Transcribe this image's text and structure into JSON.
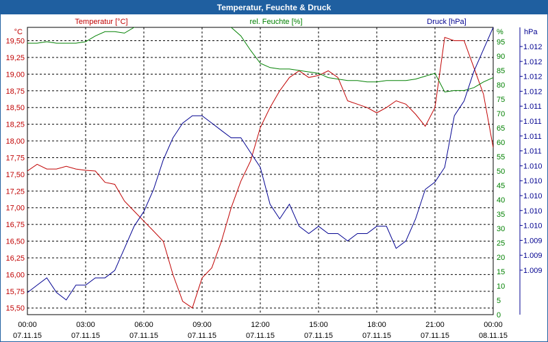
{
  "window": {
    "title": "Temperatur, Feuchte & Druck"
  },
  "colors": {
    "temperature": "#c00000",
    "humidity": "#008000",
    "pressure": "#000090",
    "grid": "#000000"
  },
  "chart_data": {
    "type": "line",
    "title": "Temperatur, Feuchte & Druck",
    "grid": true,
    "legend_labels": {
      "temperature": "Temperatur [°C]",
      "humidity": "rel. Feuchte [%]",
      "pressure": "Druck [hPa]"
    },
    "axes": {
      "left": {
        "unit": "°C",
        "range": [
          15.4,
          19.7
        ],
        "ticks": [
          "19,50",
          "19,25",
          "19,00",
          "18,75",
          "18,50",
          "18,25",
          "18,00",
          "17,75",
          "17,50",
          "17,25",
          "17,00",
          "16,75",
          "16,50",
          "16,25",
          "16,00",
          "15,75",
          "15,50"
        ],
        "tick_values": [
          19.5,
          19.25,
          19.0,
          18.75,
          18.5,
          18.25,
          18.0,
          17.75,
          17.5,
          17.25,
          17.0,
          16.75,
          16.5,
          16.25,
          16.0,
          15.75,
          15.5
        ]
      },
      "right1": {
        "unit": "%",
        "range": [
          0,
          100
        ],
        "ticks": [
          "95",
          "90",
          "85",
          "80",
          "75",
          "70",
          "65",
          "60",
          "55",
          "50",
          "45",
          "40",
          "35",
          "30",
          "25",
          "20",
          "15",
          "10",
          "5",
          "0"
        ],
        "tick_values": [
          95,
          90,
          85,
          80,
          75,
          70,
          65,
          60,
          55,
          50,
          45,
          40,
          35,
          30,
          25,
          20,
          15,
          10,
          5,
          0
        ]
      },
      "right2": {
        "unit": "hPa",
        "range": [
          1008.6,
          1012.5
        ],
        "ticks": [
          "1.012",
          "1.012",
          "1.012",
          "1.012",
          "1.011",
          "1.011",
          "1.011",
          "1.011",
          "1.010",
          "1.010",
          "1.010",
          "1.010",
          "1.010",
          "1.009",
          "1.009",
          "1.009"
        ]
      },
      "x": {
        "range_hours": [
          0,
          24
        ],
        "ticks": [
          {
            "time": "00:00",
            "date": "07.11.15"
          },
          {
            "time": "03:00",
            "date": "07.11.15"
          },
          {
            "time": "06:00",
            "date": "07.11.15"
          },
          {
            "time": "09:00",
            "date": "07.11.15"
          },
          {
            "time": "12:00",
            "date": "07.11.15"
          },
          {
            "time": "15:00",
            "date": "07.11.15"
          },
          {
            "time": "18:00",
            "date": "07.11.15"
          },
          {
            "time": "21:00",
            "date": "07.11.15"
          },
          {
            "time": "00:00",
            "date": "08.11.15"
          }
        ]
      }
    },
    "series": [
      {
        "name": "Temperatur [°C]",
        "axis": "left",
        "x": [
          0,
          0.5,
          1,
          1.5,
          2,
          2.5,
          3,
          3.5,
          4,
          4.5,
          5,
          5.5,
          6,
          6.5,
          7,
          7.5,
          8,
          8.5,
          9,
          9.5,
          10,
          10.5,
          11,
          11.5,
          12,
          12.5,
          13,
          13.5,
          14,
          14.5,
          15,
          15.5,
          16,
          16.5,
          17,
          17.5,
          18,
          18.5,
          19,
          19.5,
          20,
          20.5,
          21,
          21.5,
          22,
          22.5,
          23,
          23.5,
          24
        ],
        "y": [
          17.55,
          17.65,
          17.58,
          17.58,
          17.62,
          17.58,
          17.56,
          17.55,
          17.38,
          17.35,
          17.1,
          16.95,
          16.8,
          16.65,
          16.5,
          16.0,
          15.6,
          15.5,
          15.95,
          16.1,
          16.5,
          17.0,
          17.4,
          17.7,
          18.2,
          18.5,
          18.75,
          18.95,
          19.05,
          18.95,
          18.98,
          19.05,
          18.95,
          18.6,
          18.55,
          18.5,
          18.42,
          18.5,
          18.6,
          18.55,
          18.4,
          18.22,
          18.5,
          19.55,
          19.5,
          19.5,
          19.1,
          18.7,
          17.9
        ]
      },
      {
        "name": "rel. Feuchte [%]",
        "axis": "right1",
        "x": [
          0,
          0.5,
          1,
          1.5,
          2,
          2.5,
          3,
          3.5,
          4,
          4.5,
          5,
          5.5,
          6,
          6.5,
          7,
          7.5,
          8,
          8.5,
          9,
          9.5,
          10,
          10.5,
          11,
          11.5,
          12,
          12.5,
          13,
          13.5,
          14,
          14.5,
          15,
          15.5,
          16,
          16.5,
          17,
          17.5,
          18,
          18.5,
          19,
          19.5,
          20,
          20.5,
          21,
          21.5,
          22,
          22.5,
          23,
          23.5,
          24
        ],
        "y": [
          94.5,
          94.5,
          95,
          94.5,
          94.5,
          94.5,
          95,
          97,
          98.5,
          98.5,
          98,
          100,
          101,
          101,
          101,
          101,
          101,
          101,
          101,
          101,
          101,
          100,
          97,
          92,
          87.5,
          86,
          85.5,
          85.5,
          85,
          84.5,
          84,
          82.5,
          82,
          81.5,
          81.5,
          81,
          81,
          81.5,
          81.5,
          81.5,
          82,
          83,
          84,
          77.5,
          78,
          78,
          79,
          81,
          82.5
        ]
      },
      {
        "name": "Druck [hPa]",
        "axis": "right2",
        "x": [
          0,
          0.5,
          1,
          1.5,
          2,
          2.5,
          3,
          3.5,
          4,
          4.5,
          5,
          5.5,
          6,
          6.5,
          7,
          7.5,
          8,
          8.5,
          9,
          9.5,
          10,
          10.5,
          11,
          11.5,
          12,
          12.5,
          13,
          13.5,
          14,
          14.5,
          15,
          15.5,
          16,
          16.5,
          17,
          17.5,
          18,
          18.5,
          19,
          19.5,
          20,
          20.5,
          21,
          21.5,
          22,
          22.5,
          23,
          23.5,
          24
        ],
        "y": [
          1008.9,
          1009.0,
          1009.1,
          1008.9,
          1008.8,
          1009.0,
          1009.0,
          1009.1,
          1009.1,
          1009.2,
          1009.5,
          1009.8,
          1010.0,
          1010.3,
          1010.7,
          1011.0,
          1011.2,
          1011.3,
          1011.3,
          1011.2,
          1011.1,
          1011.0,
          1011.0,
          1010.8,
          1010.6,
          1010.1,
          1009.9,
          1010.1,
          1009.8,
          1009.7,
          1009.8,
          1009.7,
          1009.7,
          1009.6,
          1009.7,
          1009.7,
          1009.8,
          1009.8,
          1009.5,
          1009.6,
          1009.9,
          1010.3,
          1010.4,
          1010.6,
          1011.3,
          1011.5,
          1011.9,
          1012.2,
          1012.5
        ]
      }
    ]
  }
}
